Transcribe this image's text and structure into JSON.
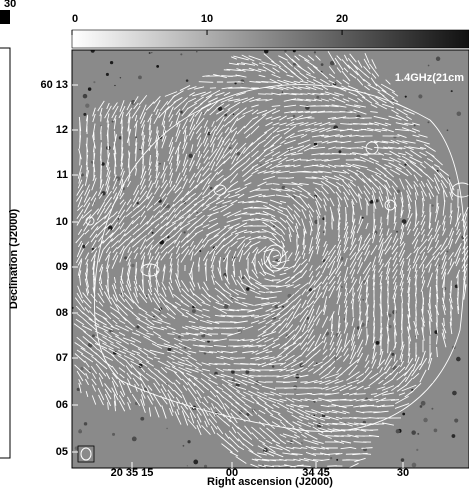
{
  "left_panel": {
    "colorbar_tick": 30
  },
  "colorbar": {
    "lim": [
      0,
      29.4
    ],
    "ticks": [
      0,
      10,
      20
    ]
  },
  "annotation": "1.4GHz(21cm",
  "y_axis": {
    "label": "Declination (J2000)",
    "ticks": [
      "60 13",
      "12",
      "11",
      "10",
      "09",
      "08",
      "07",
      "06",
      "05"
    ]
  },
  "x_axis": {
    "label": "Right ascension (J2000)",
    "ticks": [
      "20 35 15",
      "00",
      "34 45",
      "30"
    ]
  }
}
